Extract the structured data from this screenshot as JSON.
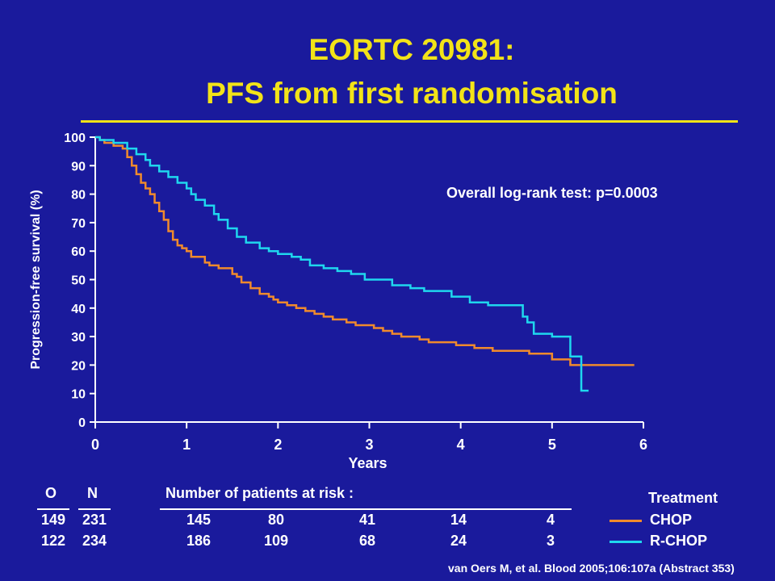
{
  "slide": {
    "title_line1": "EORTC 20981:",
    "title_line2": "PFS from first randomisation",
    "annotation": "Overall log-rank test: p=0.0003",
    "citation": "van Oers M, et al. Blood 2005;106:107a (Abstract 353)"
  },
  "risk_table": {
    "header_o": "O",
    "header_n": "N",
    "header_risk": "Number of patients at risk :",
    "rows": [
      {
        "o": "149",
        "n": "231",
        "values": [
          "145",
          "80",
          "41",
          "14",
          "4"
        ]
      },
      {
        "o": "122",
        "n": "234",
        "values": [
          "186",
          "109",
          "68",
          "24",
          "3"
        ]
      }
    ]
  },
  "legend": {
    "title": "Treatment",
    "items": [
      {
        "label": "CHOP",
        "color": "#f08a2c"
      },
      {
        "label": "R-CHOP",
        "color": "#1fd7ee"
      }
    ]
  },
  "chart_data": {
    "type": "line",
    "title": "EORTC 20981: PFS from first randomisation",
    "xlabel": "Years",
    "ylabel": "Progression-free survival (%)",
    "xlim": [
      0,
      6
    ],
    "ylim": [
      0,
      100
    ],
    "xticks": [
      0,
      1,
      2,
      3,
      4,
      5,
      6
    ],
    "yticks": [
      0,
      10,
      20,
      30,
      40,
      50,
      60,
      70,
      80,
      90,
      100
    ],
    "grid": false,
    "step": true,
    "series": [
      {
        "name": "CHOP",
        "color": "#f08a2c",
        "x": [
          0,
          0.05,
          0.1,
          0.2,
          0.3,
          0.35,
          0.4,
          0.45,
          0.5,
          0.55,
          0.6,
          0.65,
          0.7,
          0.75,
          0.8,
          0.85,
          0.9,
          0.95,
          1.0,
          1.05,
          1.1,
          1.15,
          1.2,
          1.25,
          1.35,
          1.5,
          1.55,
          1.6,
          1.7,
          1.8,
          1.9,
          1.95,
          2.0,
          2.1,
          2.2,
          2.3,
          2.4,
          2.5,
          2.6,
          2.75,
          2.85,
          3.05,
          3.15,
          3.25,
          3.35,
          3.55,
          3.65,
          3.95,
          4.15,
          4.35,
          4.75,
          5.0,
          5.2,
          5.45,
          5.55,
          5.9
        ],
        "y": [
          100,
          99,
          98,
          97,
          96,
          93,
          90,
          87,
          84,
          82,
          80,
          77,
          74,
          71,
          67,
          64,
          62,
          61,
          60,
          58,
          58,
          58,
          56,
          55,
          54,
          52,
          51,
          49,
          47,
          45,
          44,
          43,
          42,
          41,
          40,
          39,
          38,
          37,
          36,
          35,
          34,
          33,
          32,
          31,
          30,
          29,
          28,
          27,
          26,
          25,
          24,
          22,
          20,
          20,
          20,
          20
        ]
      },
      {
        "name": "R-CHOP",
        "color": "#1fd7ee",
        "x": [
          0,
          0.05,
          0.2,
          0.35,
          0.45,
          0.55,
          0.6,
          0.7,
          0.8,
          0.9,
          1.0,
          1.05,
          1.1,
          1.2,
          1.3,
          1.35,
          1.45,
          1.55,
          1.65,
          1.8,
          1.9,
          2.0,
          2.15,
          2.25,
          2.35,
          2.5,
          2.65,
          2.8,
          2.95,
          3.25,
          3.45,
          3.6,
          3.9,
          4.1,
          4.3,
          4.5,
          4.68,
          4.73,
          4.8,
          5.0,
          5.2,
          5.28,
          5.32,
          5.4
        ],
        "y": [
          100,
          99,
          98,
          96,
          94,
          92,
          90,
          88,
          86,
          84,
          82,
          80,
          78,
          76,
          73,
          71,
          68,
          65,
          63,
          61,
          60,
          59,
          58,
          57,
          55,
          54,
          53,
          52,
          50,
          48,
          47,
          46,
          44,
          42,
          41,
          41,
          37,
          35,
          31,
          30,
          23,
          23,
          11,
          11
        ]
      }
    ]
  }
}
